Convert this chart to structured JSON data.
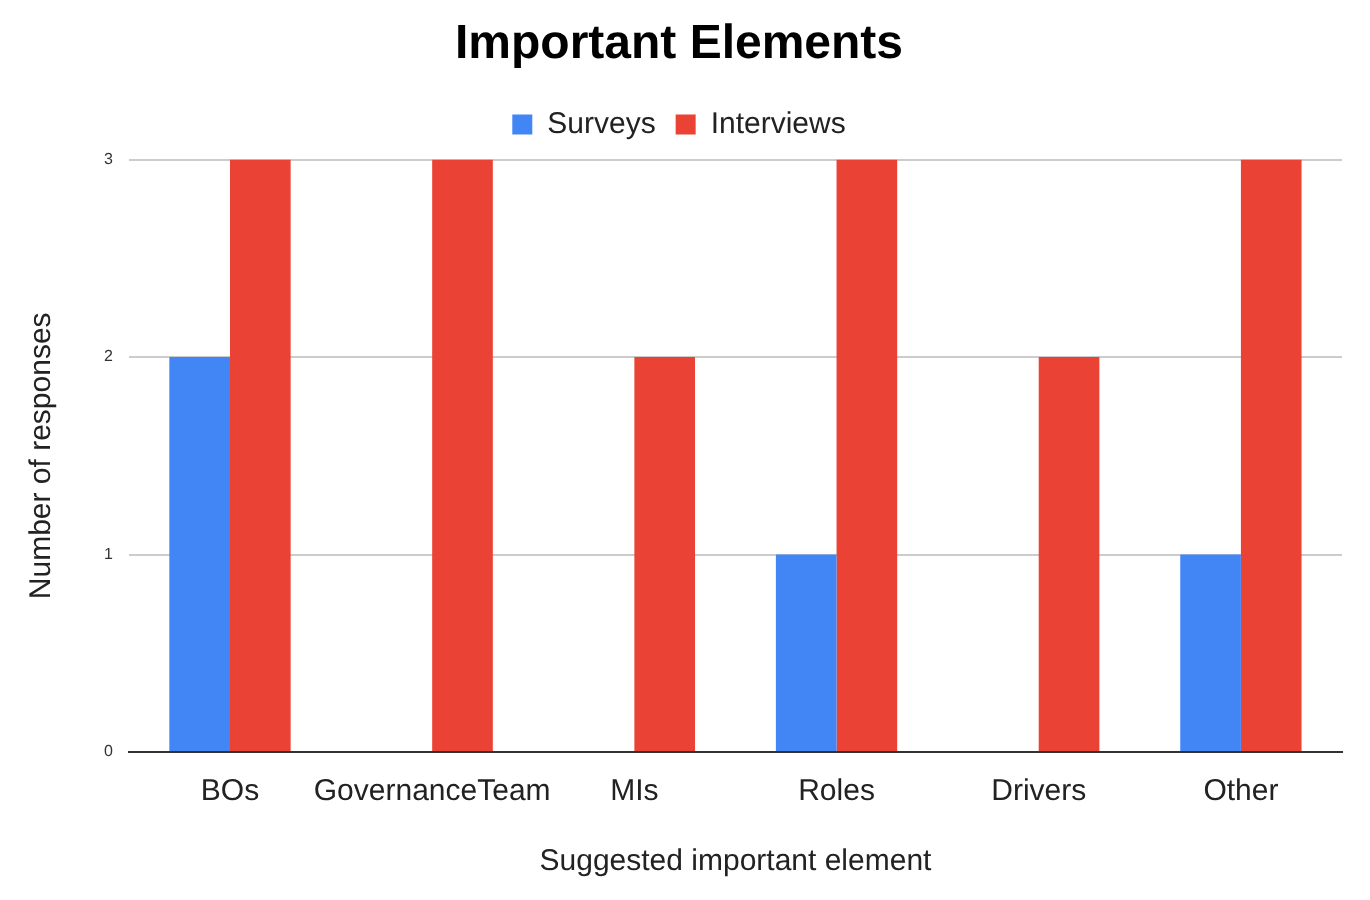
{
  "chart_data": {
    "type": "bar",
    "title": "Important Elements",
    "xlabel": "Suggested important element",
    "ylabel": "Number of responses",
    "categories": [
      "BOs",
      "GovernanceTeam",
      "MIs",
      "Roles",
      "Drivers",
      "Other"
    ],
    "series": [
      {
        "name": "Surveys",
        "color": "#4285f4",
        "values": [
          2,
          0,
          0,
          1,
          0,
          1
        ]
      },
      {
        "name": "Interviews",
        "color": "#ea4335",
        "values": [
          3,
          3,
          2,
          3,
          2,
          3
        ]
      }
    ],
    "ylim": [
      0,
      3
    ],
    "yticks": [
      0,
      1,
      2,
      3
    ],
    "grid": "y",
    "legend": "top"
  }
}
